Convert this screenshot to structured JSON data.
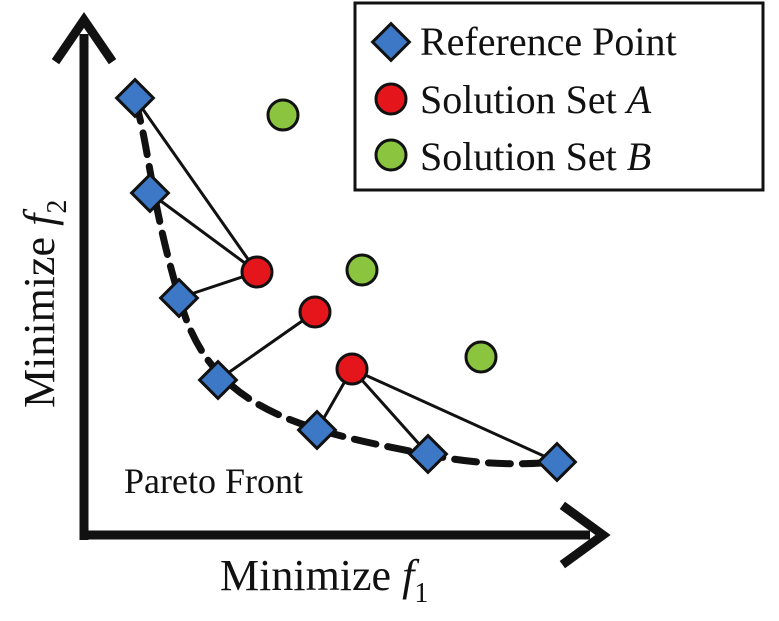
{
  "colors": {
    "reference": "#3d78c7",
    "solution_a": "#e5161b",
    "solution_b": "#8bc53f",
    "stroke": "#111111"
  },
  "labels": {
    "pareto_front": "Pareto Front",
    "x_axis_prefix": "Minimize ",
    "x_axis_var": "f",
    "x_axis_sub": "1",
    "y_axis_prefix": "Minimize ",
    "y_axis_var": "f",
    "y_axis_sub": "2"
  },
  "legend": {
    "items": [
      {
        "prefix": "Reference Point",
        "italic": "",
        "marker": "diamond"
      },
      {
        "prefix": "Solution Set ",
        "italic": "A",
        "marker": "circle-red"
      },
      {
        "prefix": "Solution Set ",
        "italic": "B",
        "marker": "circle-green"
      }
    ]
  }
}
